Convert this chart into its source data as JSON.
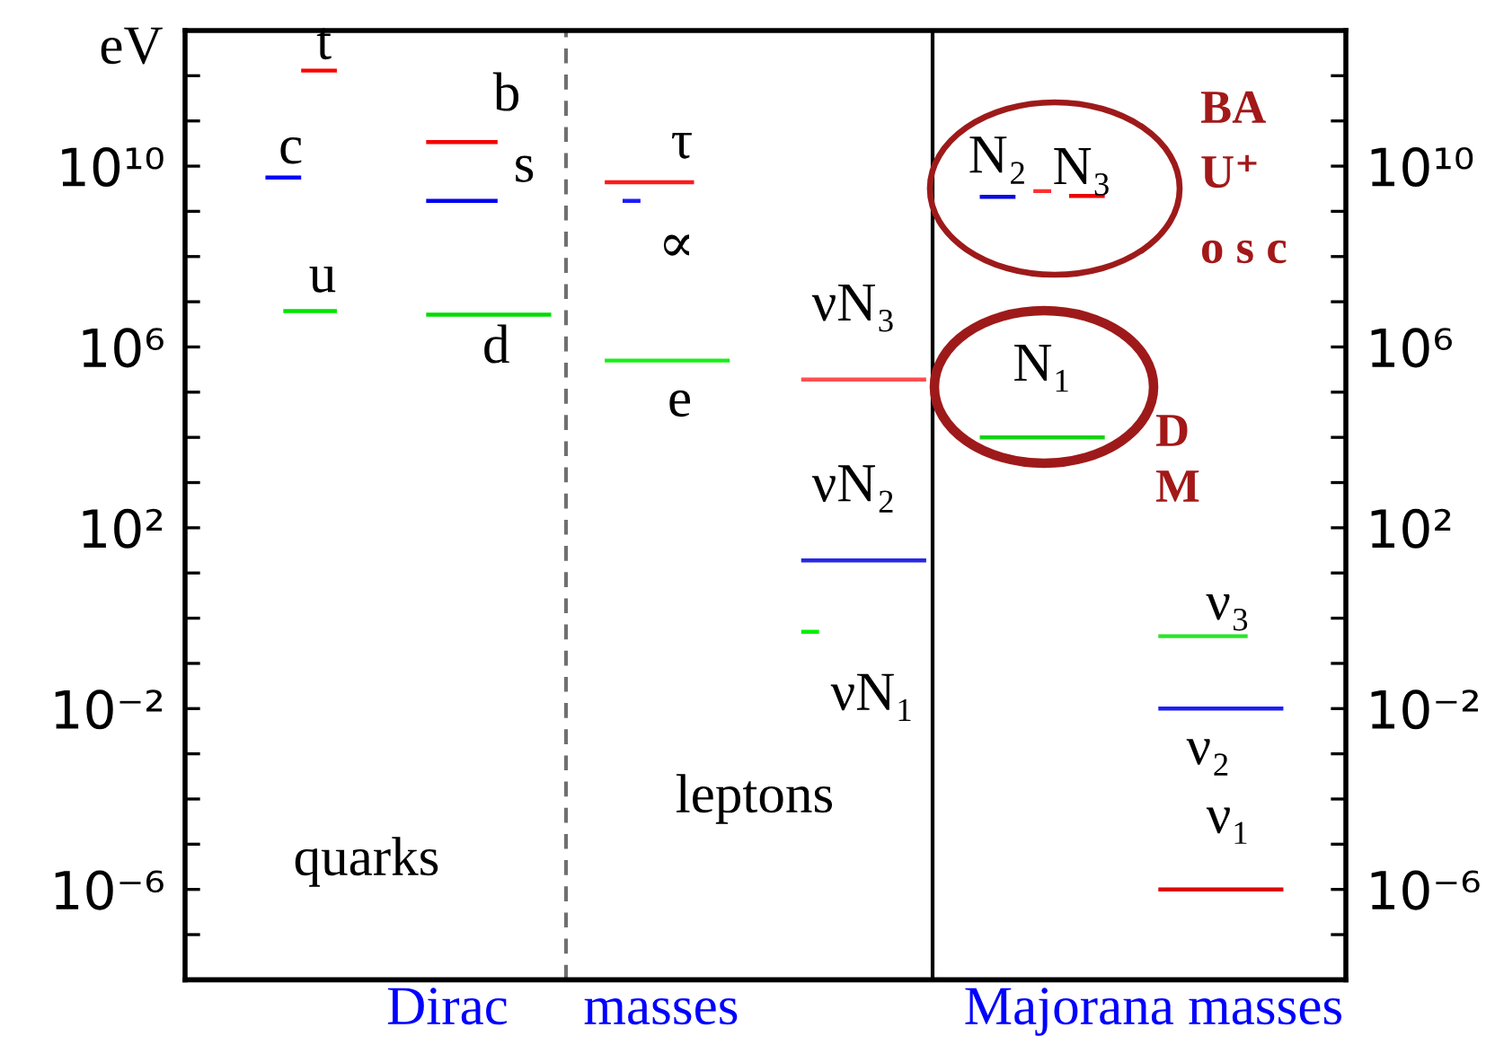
{
  "chart_data": {
    "type": "line",
    "log": true,
    "categories": [
      null,
      null,
      null,
      null,
      null,
      null,
      null,
      null,
      null,
      null,
      null,
      null,
      null,
      null,
      null,
      null,
      null,
      null,
      null,
      null,
      null,
      null,
      null,
      null,
      null,
      null,
      null,
      null,
      null,
      null,
      null,
      null,
      null,
      null,
      null,
      null,
      null,
      null,
      null,
      null,
      null,
      null,
      null,
      null,
      null,
      null,
      null,
      null,
      null,
      null,
      null,
      null,
      null,
      null,
      null,
      null,
      null,
      null,
      null,
      null,
      null,
      null,
      null,
      null,
      null
    ],
    "ylim": [
      1e-08,
      10000000000000.0
    ],
    "yticks": [
      {
        "value": 1000000000000.0,
        "label": null
      },
      {
        "value": 100000000000.0,
        "label": null
      },
      {
        "value": 10000000000.0,
        "label": "10¹⁰"
      },
      {
        "value": 1000000000.0,
        "label": null
      },
      {
        "value": 100000000.0,
        "label": null
      },
      {
        "value": 10000000.0,
        "label": null
      },
      {
        "value": 1000000.0,
        "label": "10⁶"
      },
      {
        "value": 100000.0,
        "label": null
      },
      {
        "value": 10000.0,
        "label": null
      },
      {
        "value": 1000.0,
        "label": null
      },
      {
        "value": 100,
        "label": "10²"
      },
      {
        "value": 10,
        "label": null
      },
      {
        "value": 1,
        "label": null
      },
      {
        "value": 0.1,
        "label": null
      },
      {
        "value": 0.01,
        "label": "10⁻²"
      },
      {
        "value": 0.001,
        "label": null
      },
      {
        "value": 0.0001,
        "label": null
      },
      {
        "value": 1e-05,
        "label": null
      },
      {
        "value": 1e-06,
        "label": "10⁻⁶"
      },
      {
        "value": 1e-07,
        "label": null
      }
    ],
    "series": [
      {
        "name": "t",
        "color": "#ff0000",
        "values": [
          null,
          null,
          null,
          null,
          null,
          null,
          1300000000000.0,
          1300000000000.0,
          1300000000000.0,
          null,
          null,
          null,
          null,
          null,
          null,
          null,
          null,
          null,
          null,
          null,
          null,
          null,
          null,
          null,
          null,
          null,
          null,
          null,
          null,
          null,
          null,
          null,
          null,
          null,
          null,
          null,
          null,
          null,
          null,
          null,
          null,
          null,
          null,
          null,
          null,
          null,
          null,
          null,
          null,
          null,
          null,
          null,
          null,
          null,
          null,
          null,
          null,
          null,
          null,
          null,
          null,
          null,
          null,
          null,
          null
        ]
      },
      {
        "name": "c",
        "color": "#0000ff",
        "values": [
          null,
          null,
          null,
          null,
          5600000000.0,
          5600000000.0,
          5600000000.0,
          null,
          null,
          null,
          null,
          null,
          null,
          null,
          null,
          null,
          null,
          null,
          null,
          null,
          null,
          null,
          null,
          null,
          null,
          null,
          null,
          null,
          null,
          null,
          null,
          null,
          null,
          null,
          null,
          null,
          null,
          null,
          null,
          null,
          null,
          null,
          null,
          null,
          null,
          null,
          null,
          null,
          null,
          null,
          null,
          null,
          null,
          null,
          null,
          null,
          null,
          null,
          null,
          null,
          null,
          null,
          null,
          null,
          null
        ]
      },
      {
        "name": "u",
        "color": "#00e600",
        "values": [
          null,
          null,
          null,
          null,
          null,
          6200000.0,
          6200000.0,
          6200000.0,
          6200000.0,
          null,
          null,
          null,
          null,
          null,
          null,
          null,
          null,
          null,
          null,
          null,
          null,
          null,
          null,
          null,
          null,
          null,
          null,
          null,
          null,
          null,
          null,
          null,
          null,
          null,
          null,
          null,
          null,
          null,
          null,
          null,
          null,
          null,
          null,
          null,
          null,
          null,
          null,
          null,
          null,
          null,
          null,
          null,
          null,
          null,
          null,
          null,
          null,
          null,
          null,
          null,
          null,
          null,
          null,
          null,
          null
        ]
      },
      {
        "name": "b",
        "color": "#f50000",
        "values": [
          null,
          null,
          null,
          null,
          null,
          null,
          null,
          null,
          null,
          null,
          null,
          null,
          null,
          34000000000.0,
          34000000000.0,
          34000000000.0,
          34000000000.0,
          34000000000.0,
          null,
          null,
          null,
          null,
          null,
          null,
          null,
          null,
          null,
          null,
          null,
          null,
          null,
          null,
          null,
          null,
          null,
          null,
          null,
          null,
          null,
          null,
          null,
          null,
          null,
          null,
          null,
          null,
          null,
          null,
          null,
          null,
          null,
          null,
          null,
          null,
          null,
          null,
          null,
          null,
          null,
          null,
          null,
          null,
          null,
          null,
          null
        ]
      },
      {
        "name": "s",
        "color": "#0000f0",
        "values": [
          null,
          null,
          null,
          null,
          null,
          null,
          null,
          null,
          null,
          null,
          null,
          null,
          null,
          1700000000.0,
          1700000000.0,
          1700000000.0,
          1700000000.0,
          1700000000.0,
          null,
          null,
          null,
          null,
          null,
          null,
          null,
          null,
          null,
          null,
          null,
          null,
          null,
          null,
          null,
          null,
          null,
          null,
          null,
          null,
          null,
          null,
          null,
          null,
          null,
          null,
          null,
          null,
          null,
          null,
          null,
          null,
          null,
          null,
          null,
          null,
          null,
          null,
          null,
          null,
          null,
          null,
          null,
          null,
          null,
          null,
          null
        ]
      },
      {
        "name": "d",
        "color": "#00dc00",
        "values": [
          null,
          null,
          null,
          null,
          null,
          null,
          null,
          null,
          null,
          null,
          null,
          null,
          null,
          5200000.0,
          5200000.0,
          5200000.0,
          5200000.0,
          5200000.0,
          5200000.0,
          5200000.0,
          5200000.0,
          null,
          null,
          null,
          null,
          null,
          null,
          null,
          null,
          null,
          null,
          null,
          null,
          null,
          null,
          null,
          null,
          null,
          null,
          null,
          null,
          null,
          null,
          null,
          null,
          null,
          null,
          null,
          null,
          null,
          null,
          null,
          null,
          null,
          null,
          null,
          null,
          null,
          null,
          null,
          null,
          null,
          null,
          null,
          null
        ]
      },
      {
        "name": "τ",
        "color": "#ff1a1a",
        "values": [
          null,
          null,
          null,
          null,
          null,
          null,
          null,
          null,
          null,
          null,
          null,
          null,
          null,
          null,
          null,
          null,
          null,
          null,
          null,
          null,
          null,
          null,
          null,
          4400000000.0,
          4400000000.0,
          4400000000.0,
          4400000000.0,
          4400000000.0,
          4400000000.0,
          null,
          null,
          null,
          null,
          null,
          null,
          null,
          null,
          null,
          null,
          null,
          null,
          null,
          null,
          null,
          null,
          null,
          null,
          null,
          null,
          null,
          null,
          null,
          null,
          null,
          null,
          null,
          null,
          null,
          null,
          null,
          null,
          null,
          null,
          null,
          null
        ]
      },
      {
        "name": "∝",
        "color": "#1a1aff",
        "values": [
          null,
          null,
          null,
          null,
          null,
          null,
          null,
          null,
          null,
          null,
          null,
          null,
          null,
          null,
          null,
          null,
          null,
          null,
          null,
          null,
          null,
          null,
          null,
          null,
          1700000000.0,
          1700000000.0,
          null,
          null,
          null,
          null,
          null,
          null,
          null,
          null,
          null,
          null,
          null,
          null,
          null,
          null,
          null,
          null,
          null,
          null,
          null,
          null,
          null,
          null,
          null,
          null,
          null,
          null,
          null,
          null,
          null,
          null,
          null,
          null,
          null,
          null,
          null,
          null,
          null,
          null,
          null
        ]
      },
      {
        "name": "e",
        "color": "#1aee1a",
        "values": [
          null,
          null,
          null,
          null,
          null,
          null,
          null,
          null,
          null,
          null,
          null,
          null,
          null,
          null,
          null,
          null,
          null,
          null,
          null,
          null,
          null,
          null,
          null,
          500000,
          500000,
          500000,
          500000,
          500000,
          500000,
          500000,
          500000,
          null,
          null,
          null,
          null,
          null,
          null,
          null,
          null,
          null,
          null,
          null,
          null,
          null,
          null,
          null,
          null,
          null,
          null,
          null,
          null,
          null,
          null,
          null,
          null,
          null,
          null,
          null,
          null,
          null,
          null,
          null,
          null,
          null,
          null
        ]
      },
      {
        "name": "νN₃",
        "color": "#ff5050",
        "values": [
          null,
          null,
          null,
          null,
          null,
          null,
          null,
          null,
          null,
          null,
          null,
          null,
          null,
          null,
          null,
          null,
          null,
          null,
          null,
          null,
          null,
          null,
          null,
          null,
          null,
          null,
          null,
          null,
          null,
          null,
          null,
          null,
          null,
          null,
          190000,
          190000,
          190000,
          190000,
          190000,
          190000,
          190000,
          190000,
          null,
          null,
          null,
          null,
          null,
          null,
          null,
          null,
          null,
          null,
          null,
          null,
          null,
          null,
          null,
          null,
          null,
          null,
          null,
          null,
          null,
          null,
          null
        ]
      },
      {
        "name": "νN₂",
        "color": "#2828e6",
        "values": [
          null,
          null,
          null,
          null,
          null,
          null,
          null,
          null,
          null,
          null,
          null,
          null,
          null,
          null,
          null,
          null,
          null,
          null,
          null,
          null,
          null,
          null,
          null,
          null,
          null,
          null,
          null,
          null,
          null,
          null,
          null,
          null,
          null,
          null,
          19,
          19,
          19,
          19,
          19,
          19,
          19,
          19,
          null,
          null,
          null,
          null,
          null,
          null,
          null,
          null,
          null,
          null,
          null,
          null,
          null,
          null,
          null,
          null,
          null,
          null,
          null,
          null,
          null,
          null,
          null
        ]
      },
      {
        "name": "νN₁",
        "color": "#00f000",
        "values": [
          null,
          null,
          null,
          null,
          null,
          null,
          null,
          null,
          null,
          null,
          null,
          null,
          null,
          null,
          null,
          null,
          null,
          null,
          null,
          null,
          null,
          null,
          null,
          null,
          null,
          null,
          null,
          null,
          null,
          null,
          null,
          null,
          null,
          null,
          0.5,
          0.5,
          null,
          null,
          null,
          null,
          null,
          null,
          null,
          null,
          null,
          null,
          null,
          null,
          null,
          null,
          null,
          null,
          null,
          null,
          null,
          null,
          null,
          null,
          null,
          null,
          null,
          null,
          null,
          null,
          null
        ]
      },
      {
        "name": "N₂",
        "color": "#0a0ae0",
        "values": [
          null,
          null,
          null,
          null,
          null,
          null,
          null,
          null,
          null,
          null,
          null,
          null,
          null,
          null,
          null,
          null,
          null,
          null,
          null,
          null,
          null,
          null,
          null,
          null,
          null,
          null,
          null,
          null,
          null,
          null,
          null,
          null,
          null,
          null,
          null,
          null,
          null,
          null,
          null,
          null,
          null,
          null,
          null,
          null,
          2100000000.0,
          2100000000.0,
          2100000000.0,
          null,
          null,
          null,
          null,
          null,
          null,
          null,
          null,
          null,
          null,
          null,
          null,
          null,
          null,
          null,
          null,
          null,
          null
        ]
      },
      {
        "color": "#ff3030",
        "values": [
          null,
          null,
          null,
          null,
          null,
          null,
          null,
          null,
          null,
          null,
          null,
          null,
          null,
          null,
          null,
          null,
          null,
          null,
          null,
          null,
          null,
          null,
          null,
          null,
          null,
          null,
          null,
          null,
          null,
          null,
          null,
          null,
          null,
          null,
          null,
          null,
          null,
          null,
          null,
          null,
          null,
          null,
          null,
          null,
          null,
          null,
          null,
          2800000000.0,
          2800000000.0,
          null,
          null,
          null,
          null,
          null,
          null,
          null,
          null,
          null,
          null,
          null,
          null,
          null,
          null,
          null,
          null
        ]
      },
      {
        "name": "N₃",
        "color": "#eb0000",
        "values": [
          null,
          null,
          null,
          null,
          null,
          null,
          null,
          null,
          null,
          null,
          null,
          null,
          null,
          null,
          null,
          null,
          null,
          null,
          null,
          null,
          null,
          null,
          null,
          null,
          null,
          null,
          null,
          null,
          null,
          null,
          null,
          null,
          null,
          null,
          null,
          null,
          null,
          null,
          null,
          null,
          null,
          null,
          null,
          null,
          null,
          null,
          null,
          null,
          null,
          2200000000.0,
          2200000000.0,
          2200000000.0,
          null,
          null,
          null,
          null,
          null,
          null,
          null,
          null,
          null,
          null,
          null,
          null,
          null
        ]
      },
      {
        "name": "N₁",
        "color": "#14d214",
        "values": [
          null,
          null,
          null,
          null,
          null,
          null,
          null,
          null,
          null,
          null,
          null,
          null,
          null,
          null,
          null,
          null,
          null,
          null,
          null,
          null,
          null,
          null,
          null,
          null,
          null,
          null,
          null,
          null,
          null,
          null,
          null,
          null,
          null,
          null,
          null,
          null,
          null,
          null,
          null,
          null,
          null,
          null,
          null,
          null,
          10000,
          10000,
          10000,
          10000,
          10000,
          10000,
          10000,
          10000,
          null,
          null,
          null,
          null,
          null,
          null,
          null,
          null,
          null,
          null,
          null,
          null,
          null
        ]
      },
      {
        "name": "ν₃",
        "color": "#28e628",
        "values": [
          null,
          null,
          null,
          null,
          null,
          null,
          null,
          null,
          null,
          null,
          null,
          null,
          null,
          null,
          null,
          null,
          null,
          null,
          null,
          null,
          null,
          null,
          null,
          null,
          null,
          null,
          null,
          null,
          null,
          null,
          null,
          null,
          null,
          null,
          null,
          null,
          null,
          null,
          null,
          null,
          null,
          null,
          null,
          null,
          null,
          null,
          null,
          null,
          null,
          null,
          null,
          null,
          null,
          null,
          0.4,
          0.4,
          0.4,
          0.4,
          0.4,
          0.4,
          null,
          null,
          null,
          null,
          null
        ]
      },
      {
        "name": "ν₂",
        "color": "#1e1ef5",
        "values": [
          null,
          null,
          null,
          null,
          null,
          null,
          null,
          null,
          null,
          null,
          null,
          null,
          null,
          null,
          null,
          null,
          null,
          null,
          null,
          null,
          null,
          null,
          null,
          null,
          null,
          null,
          null,
          null,
          null,
          null,
          null,
          null,
          null,
          null,
          null,
          null,
          null,
          null,
          null,
          null,
          null,
          null,
          null,
          null,
          null,
          null,
          null,
          null,
          null,
          null,
          null,
          null,
          null,
          null,
          0.01,
          0.01,
          0.01,
          0.01,
          0.01,
          0.01,
          0.01,
          0.01,
          null,
          null,
          null
        ]
      },
      {
        "name": "ν₁",
        "color": "#e00000",
        "values": [
          null,
          null,
          null,
          null,
          null,
          null,
          null,
          null,
          null,
          null,
          null,
          null,
          null,
          null,
          null,
          null,
          null,
          null,
          null,
          null,
          null,
          null,
          null,
          null,
          null,
          null,
          null,
          null,
          null,
          null,
          null,
          null,
          null,
          null,
          null,
          null,
          null,
          null,
          null,
          null,
          null,
          null,
          null,
          null,
          null,
          null,
          null,
          null,
          null,
          null,
          null,
          null,
          null,
          null,
          1e-06,
          1e-06,
          1e-06,
          1e-06,
          1e-06,
          1e-06,
          1e-06,
          1e-06,
          null,
          null,
          null
        ]
      }
    ],
    "annotations": [
      "eV",
      "quarks",
      "leptons",
      "Dirac",
      "masses",
      "Majorana masses",
      "BA",
      "U⁺",
      "o s c",
      "D",
      "M"
    ]
  }
}
